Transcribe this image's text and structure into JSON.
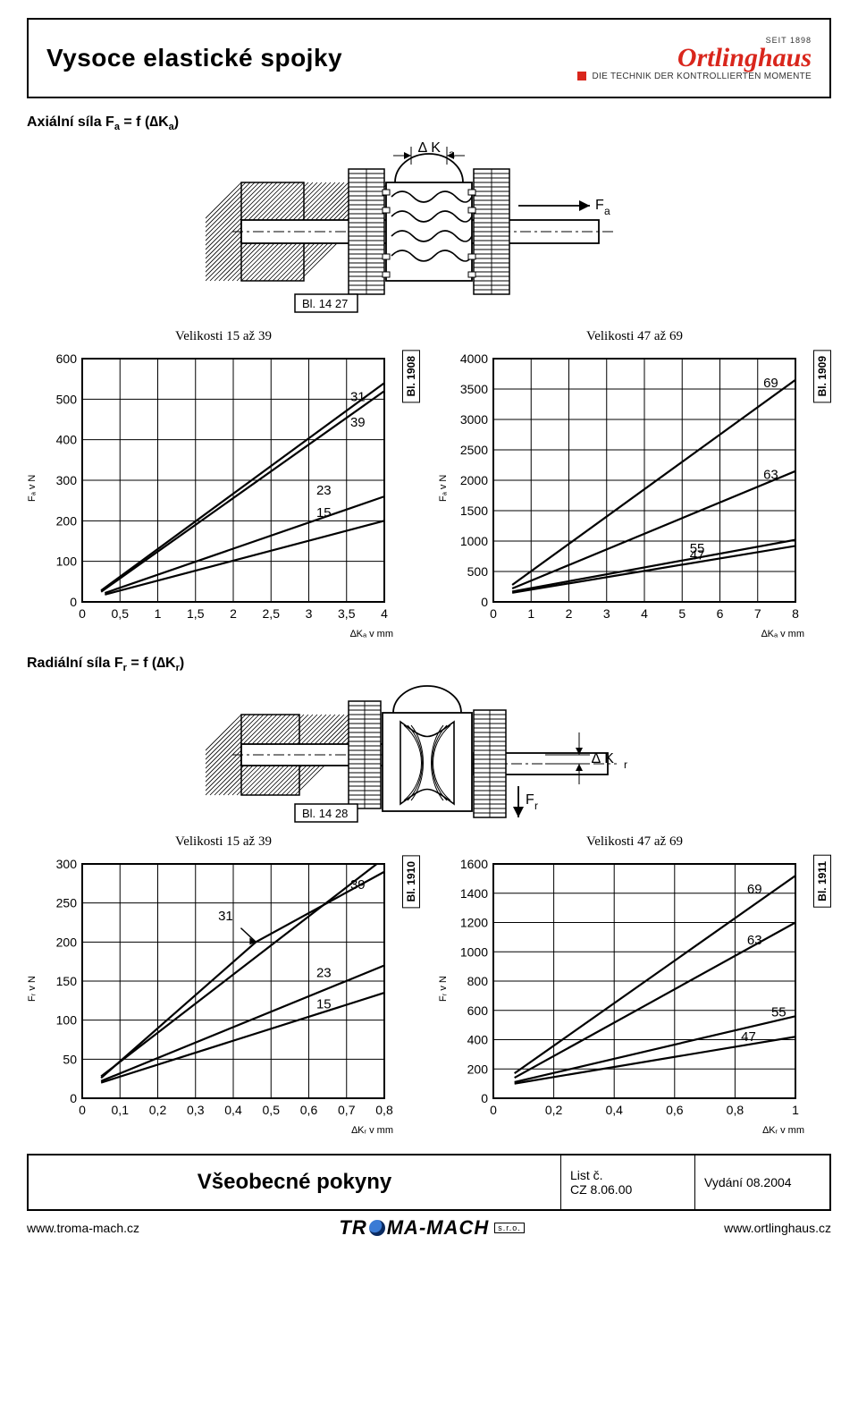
{
  "header": {
    "title": "Vysoce elastické spojky",
    "brand_seit": "SEIT 1898",
    "brand_name": "Ortlinghaus",
    "brand_tag": "DIE TECHNIK DER KONTROLLIERTEN MOMENTE"
  },
  "section_a": {
    "heading_html": "Axiální síla F<sub>a</sub> = f (∆K<sub>a</sub>)",
    "diagram": {
      "dka_label": "∆ K",
      "dka_sub": "a",
      "fa_label": "F",
      "fa_sub": "a",
      "bl_label": "Bl. 14 27"
    },
    "chart_left": {
      "title": "Velikosti 15 až 39",
      "side_label": "Bl. 1908",
      "ylabel": "Fₐ v N",
      "xlabel": "∆Kₐ v mm",
      "xlim": [
        0,
        4
      ],
      "xticks": [
        "0",
        "0,5",
        "1",
        "1,5",
        "2",
        "2,5",
        "3",
        "3,5",
        "4"
      ],
      "ylim": [
        0,
        600
      ],
      "yticks": [
        0,
        100,
        200,
        300,
        400,
        500,
        600
      ],
      "series": [
        {
          "label": "15",
          "pts": [
            [
              0.3,
              18
            ],
            [
              4,
              200
            ]
          ],
          "lx": 3.1,
          "ly": 210
        },
        {
          "label": "23",
          "pts": [
            [
              0.3,
              22
            ],
            [
              4,
              260
            ]
          ],
          "lx": 3.1,
          "ly": 265
        },
        {
          "label": "39",
          "pts": [
            [
              0.25,
              25
            ],
            [
              4,
              520
            ]
          ],
          "lx": 3.55,
          "ly": 432
        },
        {
          "label": "31",
          "pts": [
            [
              0.25,
              28
            ],
            [
              4,
              540
            ]
          ],
          "lx": 3.55,
          "ly": 495
        }
      ]
    },
    "chart_right": {
      "title": "Velikosti 47 až 69",
      "side_label": "Bl. 1909",
      "ylabel": "Fₐ v N",
      "xlabel": "∆Kₐ v mm",
      "xlim": [
        0,
        8
      ],
      "xticks": [
        0,
        1,
        2,
        3,
        4,
        5,
        6,
        7,
        8
      ],
      "ylim": [
        0,
        4000
      ],
      "yticks": [
        0,
        500,
        1000,
        1500,
        2000,
        2500,
        3000,
        3500,
        4000
      ],
      "series": [
        {
          "label": "47",
          "pts": [
            [
              0.5,
              150
            ],
            [
              8,
              920
            ]
          ],
          "lx": 5.2,
          "ly": 700
        },
        {
          "label": "55",
          "pts": [
            [
              0.5,
              170
            ],
            [
              8,
              1020
            ]
          ],
          "lx": 5.2,
          "ly": 810
        },
        {
          "label": "63",
          "pts": [
            [
              0.5,
              220
            ],
            [
              8,
              2150
            ]
          ],
          "lx": 7.15,
          "ly": 2020
        },
        {
          "label": "69",
          "pts": [
            [
              0.5,
              280
            ],
            [
              8,
              3650
            ]
          ],
          "lx": 7.15,
          "ly": 3530
        }
      ]
    }
  },
  "section_r": {
    "heading_html": "Radiální síla F<sub>r</sub> = f (∆K<sub>r</sub>)",
    "diagram": {
      "dkr_label": "∆ K",
      "dkr_sub": "r",
      "fr_label": "F",
      "fr_sub": "r",
      "bl_label": "Bl. 14 28"
    },
    "chart_left": {
      "title": "Velikosti 15 až 39",
      "side_label": "Bl. 1910",
      "ylabel": "Fᵣ v N",
      "xlabel": "∆Kᵣ v mm",
      "xlim": [
        0,
        0.8
      ],
      "xticks": [
        "0",
        "0,1",
        "0,2",
        "0,3",
        "0,4",
        "0,5",
        "0,6",
        "0,7",
        "0,8"
      ],
      "ylim": [
        0,
        300
      ],
      "yticks": [
        0,
        50,
        100,
        150,
        200,
        250,
        300
      ],
      "series": [
        {
          "label": "15",
          "pts": [
            [
              0.05,
              20
            ],
            [
              0.8,
              135
            ]
          ],
          "lx": 0.62,
          "ly": 115
        },
        {
          "label": "23",
          "pts": [
            [
              0.05,
              22
            ],
            [
              0.8,
              170
            ]
          ],
          "lx": 0.62,
          "ly": 155
        },
        {
          "label": "31",
          "pts": [
            [
              0.05,
              26
            ],
            [
              0.46,
              200
            ],
            [
              0.8,
              290
            ]
          ],
          "lx": 0.36,
          "ly": 228,
          "arrow": [
            0.42,
            218,
            0.46,
            200
          ]
        },
        {
          "label": "39",
          "pts": [
            [
              0.05,
              28
            ],
            [
              0.78,
              300
            ]
          ],
          "lx": 0.71,
          "ly": 268
        }
      ]
    },
    "chart_right": {
      "title": "Velikosti 47 až 69",
      "side_label": "Bl. 1911",
      "ylabel": "Fᵣ v N",
      "xlabel": "∆Kᵣ v mm",
      "xlim": [
        0,
        1
      ],
      "xticks": [
        "0",
        "0,2",
        "0,4",
        "0,6",
        "0,8",
        "1"
      ],
      "ylim": [
        0,
        1600
      ],
      "yticks": [
        0,
        200,
        400,
        600,
        800,
        1000,
        1200,
        1400,
        1600
      ],
      "series": [
        {
          "label": "47",
          "pts": [
            [
              0.07,
              100
            ],
            [
              1,
              420
            ]
          ],
          "lx": 0.82,
          "ly": 390
        },
        {
          "label": "55",
          "pts": [
            [
              0.07,
              110
            ],
            [
              1,
              560
            ]
          ],
          "lx": 0.92,
          "ly": 560
        },
        {
          "label": "63",
          "pts": [
            [
              0.07,
              140
            ],
            [
              1,
              1200
            ]
          ],
          "lx": 0.84,
          "ly": 1050
        },
        {
          "label": "69",
          "pts": [
            [
              0.07,
              170
            ],
            [
              1,
              1520
            ]
          ],
          "lx": 0.84,
          "ly": 1400
        }
      ]
    }
  },
  "footer": {
    "main": "Všeobecné pokyny",
    "list_label": "List č.",
    "list_code": "CZ  8.06.00",
    "edition": "Vydání 08.2004"
  },
  "bottom": {
    "left_url": "www.troma-mach.cz",
    "logo_left": "TR",
    "logo_right": "MA-MACH",
    "logo_sub": "s.r.o.",
    "right_url": "www.ortlinghaus.cz"
  },
  "style": {
    "grid_color": "#000000",
    "line_color": "#000000",
    "line_width": 2,
    "background": "#ffffff",
    "font_family": "Arial",
    "tick_fontsize": 14,
    "hatch_spacing": 4
  }
}
